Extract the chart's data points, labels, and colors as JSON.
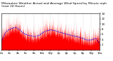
{
  "title": "Milwaukee Weather Actual and Average Wind Speed by Minute mph (Last 24 Hours)",
  "ylim": [
    0,
    14
  ],
  "yticks": [
    2,
    4,
    6,
    8,
    10,
    12,
    14
  ],
  "num_points": 1440,
  "background_color": "#ffffff",
  "actual_color": "#ff0000",
  "average_color": "#0000ee",
  "grid_color": "#bbbbbb",
  "title_fontsize": 3.2,
  "tick_fontsize": 2.8,
  "seed": 42,
  "fig_width": 1.6,
  "fig_height": 0.87,
  "dpi": 100
}
